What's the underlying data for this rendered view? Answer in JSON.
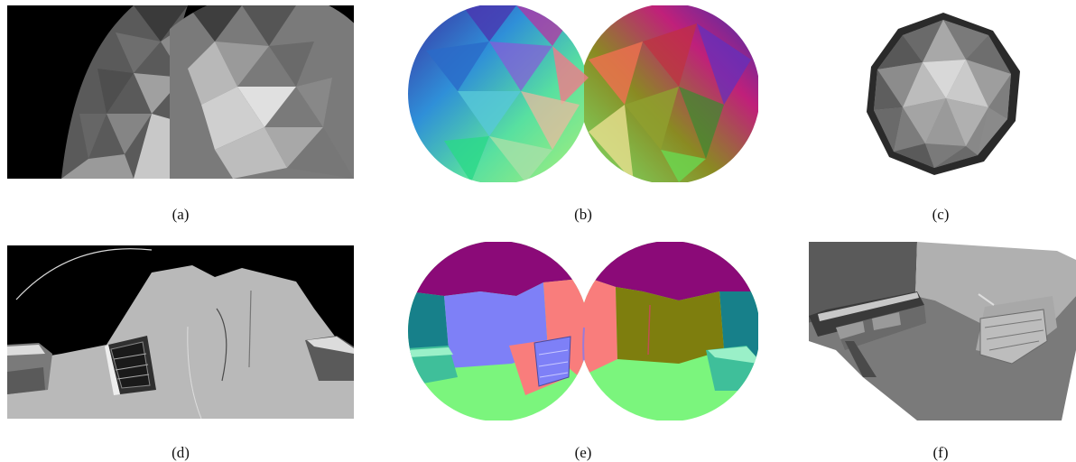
{
  "figure": {
    "panels": [
      {
        "id": "a",
        "caption": "(a)",
        "content": "shaded-icosphere-equirectangular"
      },
      {
        "id": "b",
        "caption": "(b)",
        "content": "colored-icosphere-normals-equirectangular"
      },
      {
        "id": "c",
        "caption": "(c)",
        "content": "shaded-icosphere-3d"
      },
      {
        "id": "d",
        "caption": "(d)",
        "content": "room-shading-equirectangular"
      },
      {
        "id": "e",
        "caption": "(e)",
        "content": "room-normals-equirectangular"
      },
      {
        "id": "f",
        "caption": "(f)",
        "content": "room-mesh-3d"
      }
    ],
    "colors": {
      "background": "#000000",
      "magenta": "#8B0A78",
      "teal": "#17808A",
      "blue": "#7E80F7",
      "salmon": "#F97D7C",
      "olive": "#7E7E0E",
      "green": "#7BF57D"
    }
  }
}
